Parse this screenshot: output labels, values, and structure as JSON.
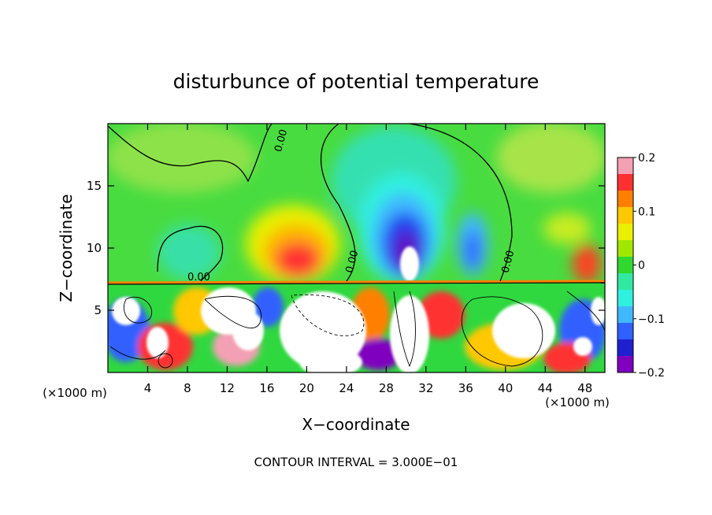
{
  "chart_data": {
    "type": "heatmap",
    "title": "disturbunce of potential temperature",
    "xlabel": "X−coordinate",
    "ylabel": "Z−coordinate",
    "x_unit": "(×1000 m)",
    "xlim": [
      0,
      50
    ],
    "ylim": [
      0,
      20
    ],
    "x_ticks": [
      4,
      8,
      12,
      16,
      20,
      24,
      28,
      32,
      36,
      40,
      44,
      48
    ],
    "y_ticks": [
      5,
      10,
      15
    ],
    "colorbar": {
      "range": [
        -0.2,
        0.2
      ],
      "ticks": [
        "0.2",
        "0.1",
        "0",
        "−0.1",
        "−0.2"
      ],
      "colors": [
        "#f4a0b4",
        "#ff3030",
        "#ff8000",
        "#ffc800",
        "#e8f000",
        "#a0e800",
        "#30d830",
        "#30e8a0",
        "#30f0e0",
        "#40b8ff",
        "#3060ff",
        "#2020d0",
        "#8000c0"
      ]
    },
    "contour_labels": [
      "0.00",
      "0.00",
      "0.00",
      "0.00"
    ],
    "footer": "CONTOUR INTERVAL = 3.000E−01"
  }
}
